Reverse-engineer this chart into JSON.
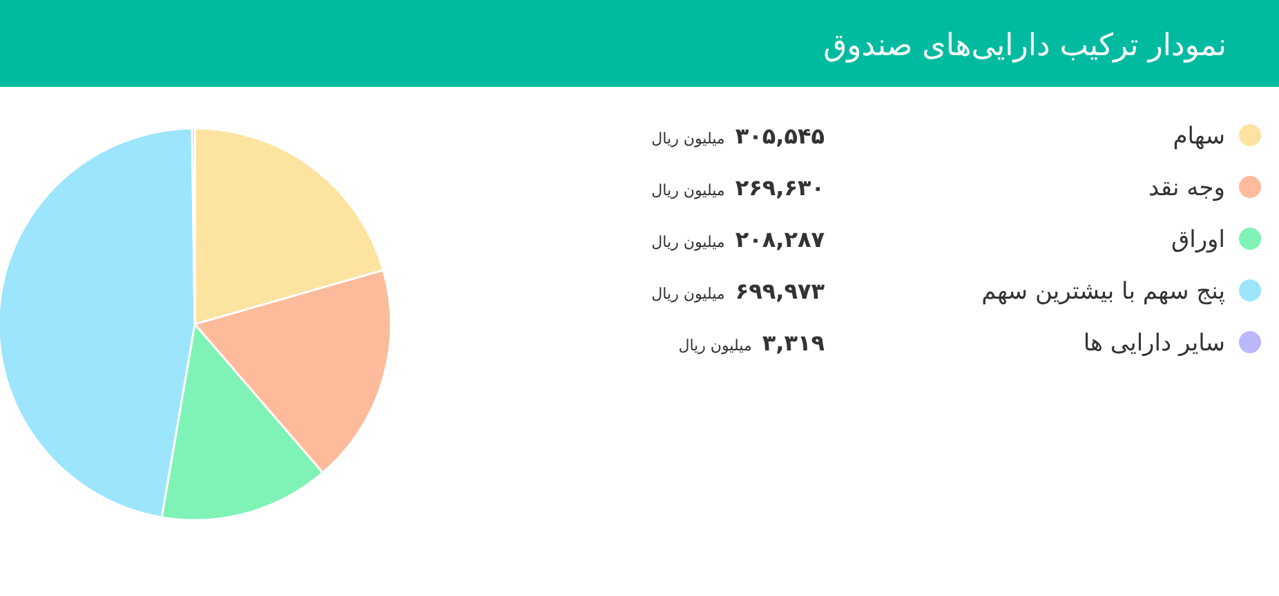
{
  "chart_data": {
    "type": "pie",
    "title": "نمودار ترکیب دارایی‌های صندوق",
    "categories": [
      "سهام",
      "وجه نقد",
      "اوراق",
      "پنج سهم با بیشترین سهم",
      "سایر دارایی ها"
    ],
    "values": [
      305545,
      269630,
      208287,
      699973,
      3319
    ],
    "value_labels": [
      "۳۰۵,۵۴۵ میلیون ریال",
      "۲۶۹,۶۳۰ میلیون ریال",
      "۲۰۸,۲۸۷ میلیون ریال",
      "۶۹۹,۹۷۳ میلیون ریال",
      "۳,۳۱۹ میلیون ریال"
    ],
    "colors": [
      "#fde3a0",
      "#febb9b",
      "#7ef3b5",
      "#9ce5fd",
      "#bcb7fb"
    ],
    "legend": "right"
  }
}
